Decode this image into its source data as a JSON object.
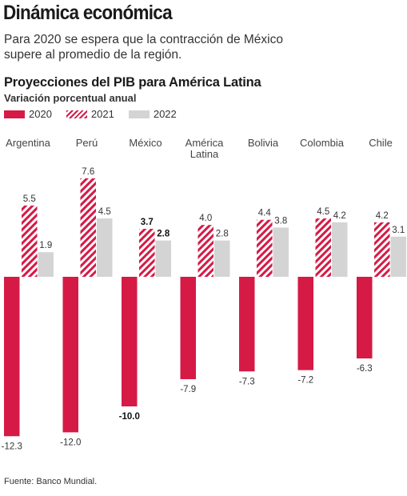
{
  "headline": "Dinámica económica",
  "dek": "Para 2020 se espera que la contracción de México supere al promedio de la región.",
  "source": "Fuente: Banco Mundial.",
  "colors": {
    "2020": "#d51a46",
    "2021": "#d51a46",
    "2022": "#d4d4d4"
  },
  "chart_data": {
    "type": "bar",
    "title": "Proyecciones del PIB para América Latina",
    "subtitle": "Variación porcentual anual",
    "legend_position": "top-left",
    "categories": [
      "Argentina",
      "Perú",
      "México",
      "América Latina",
      "Bolivia",
      "Colombia",
      "Chile"
    ],
    "category_lines": [
      [
        "Argentina"
      ],
      [
        "Perú"
      ],
      [
        "México"
      ],
      [
        "América",
        "Latina"
      ],
      [
        "Bolivia"
      ],
      [
        "Colombia"
      ],
      [
        "Chile"
      ]
    ],
    "series": [
      {
        "name": "2020",
        "values": [
          -12.3,
          -12.0,
          -10.0,
          -7.9,
          -7.3,
          -7.2,
          -6.3
        ],
        "labels": [
          "-12.3",
          "-12.0",
          "-10.0",
          "-7.9",
          "-7.3",
          "-7.2",
          "-6.3"
        ],
        "fill": "solid"
      },
      {
        "name": "2021",
        "values": [
          5.5,
          7.6,
          3.7,
          4.0,
          4.4,
          4.5,
          4.2
        ],
        "labels": [
          "5.5",
          "7.6",
          "3.7",
          "4.0",
          "4.4",
          "4.5",
          "4.2"
        ],
        "fill": "hatched"
      },
      {
        "name": "2022",
        "values": [
          1.9,
          4.5,
          2.8,
          2.8,
          3.8,
          4.2,
          3.1
        ],
        "labels": [
          "1.9",
          "4.5",
          "2.8",
          "2.8",
          "3.8",
          "4.2",
          "3.1"
        ],
        "fill": "solid"
      }
    ],
    "highlight_category": "México",
    "grid": false
  }
}
